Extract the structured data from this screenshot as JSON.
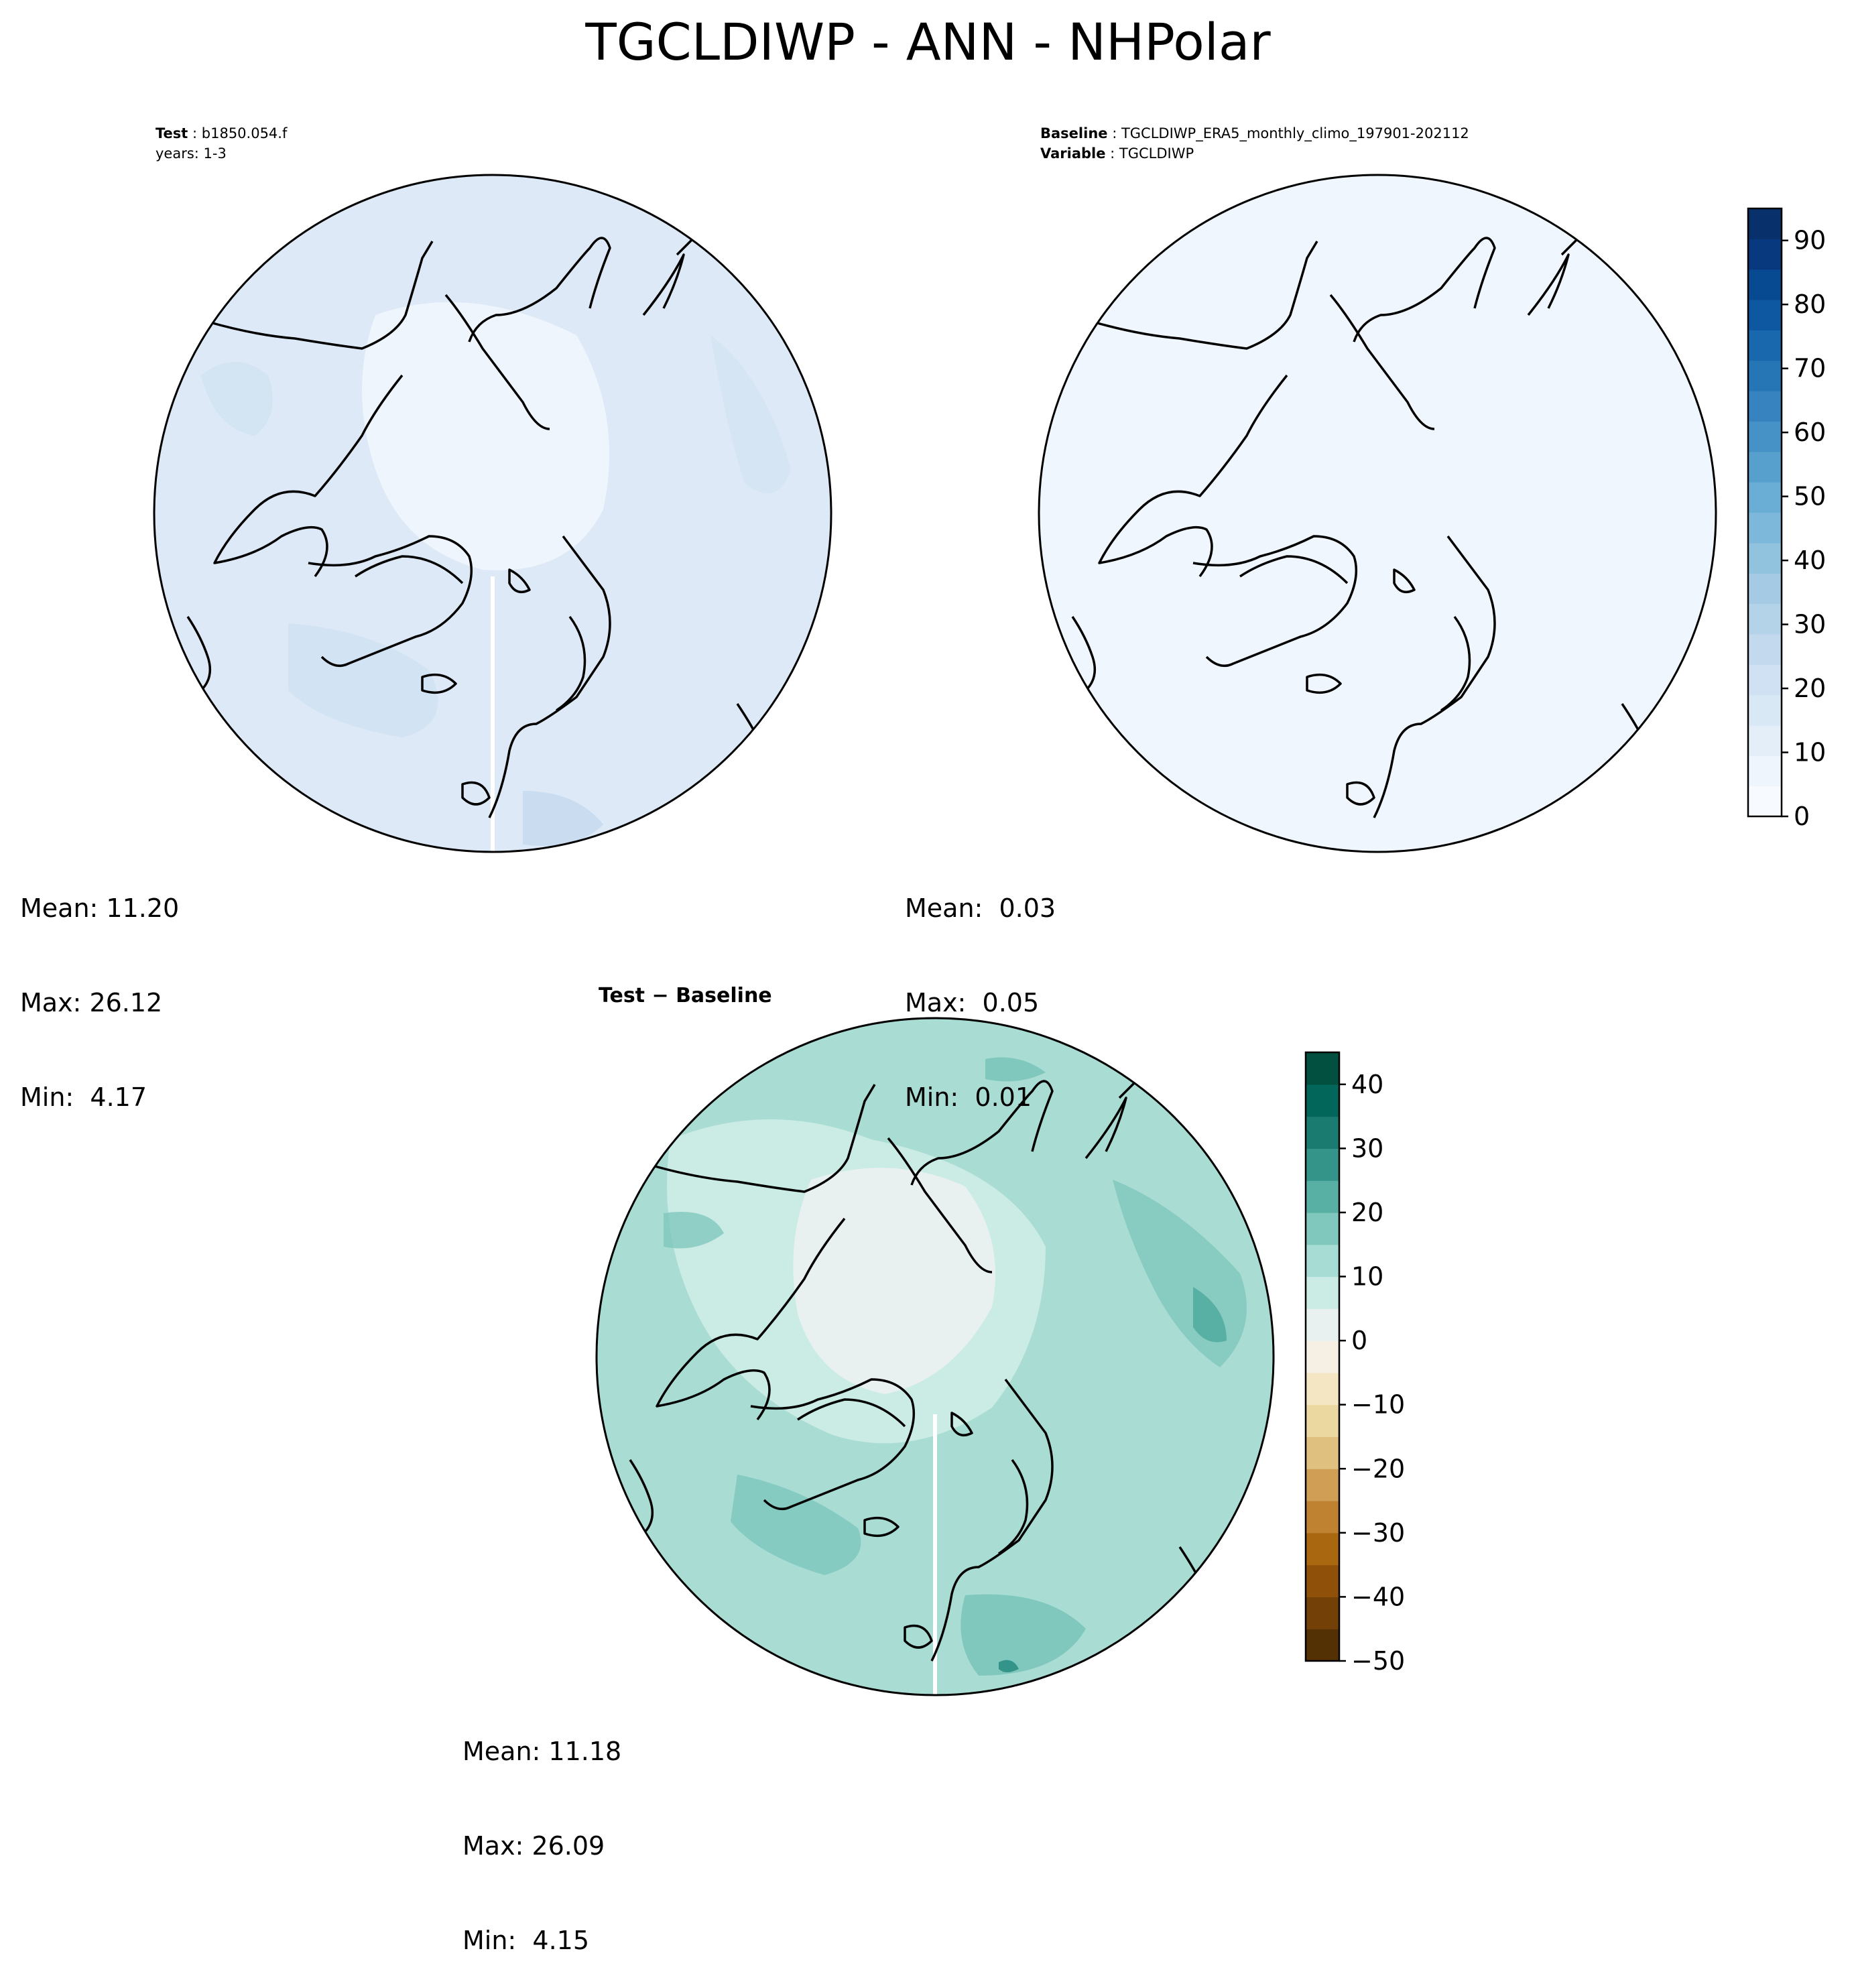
{
  "figure": {
    "title": "TGCLDIWP - ANN - NHPolar"
  },
  "panels": {
    "test": {
      "label": "Test",
      "case": "b1850.054.f",
      "years": "years: 1-3",
      "mean": "Mean: 11.20",
      "max": "Max: 26.12",
      "min": "Min:  4.17",
      "fill_color": "#dde9f6"
    },
    "baseline": {
      "label": "Baseline",
      "case": "TGCLDIWP_ERA5_monthly_climo_197901-202112",
      "variable_label": "Variable",
      "variable": "TGCLDIWP",
      "mean": "Mean:  0.03",
      "max": "Max:  0.05",
      "min": "Min:  0.01",
      "fill_color": "#f0f6fd"
    },
    "difference": {
      "title_a": "Test",
      "title_op": " − ",
      "title_b": "Baseline",
      "mean": "Mean: 11.18",
      "max": "Max: 26.09",
      "min": "Min:  4.15",
      "fill_color": "#a9dcd3"
    }
  },
  "colorbars": {
    "blues": {
      "ticks": [
        "0",
        "10",
        "20",
        "30",
        "40",
        "50",
        "60",
        "70",
        "80",
        "90"
      ],
      "colors": [
        "#f7fbff",
        "#eef5fc",
        "#e3eef9",
        "#d9e8f5",
        "#cfe1f2",
        "#c3daee",
        "#b4d3e9",
        "#a4cbe3",
        "#91c3de",
        "#7db8da",
        "#6aaed6",
        "#57a0ce",
        "#4692c6",
        "#3683bf",
        "#2675b5",
        "#1967ad",
        "#0d58a1",
        "#084a91",
        "#08397f",
        "#08306b"
      ]
    },
    "brbg": {
      "ticks": [
        "40",
        "30",
        "20",
        "10",
        "0",
        "−10",
        "−20",
        "−30",
        "−40",
        "−50"
      ],
      "colors": [
        "#543005",
        "#734007",
        "#8f510a",
        "#a9670f",
        "#bf8230",
        "#d09f55",
        "#e0c07f",
        "#ebd8a1",
        "#f4e6c3",
        "#f5f0e3",
        "#e8f1f0",
        "#cbebe5",
        "#a6dcd3",
        "#80c8bd",
        "#58afa3",
        "#34948a",
        "#1a7b70",
        "#02665a",
        "#015040"
      ]
    }
  },
  "projection": "NorthPolarStereo"
}
